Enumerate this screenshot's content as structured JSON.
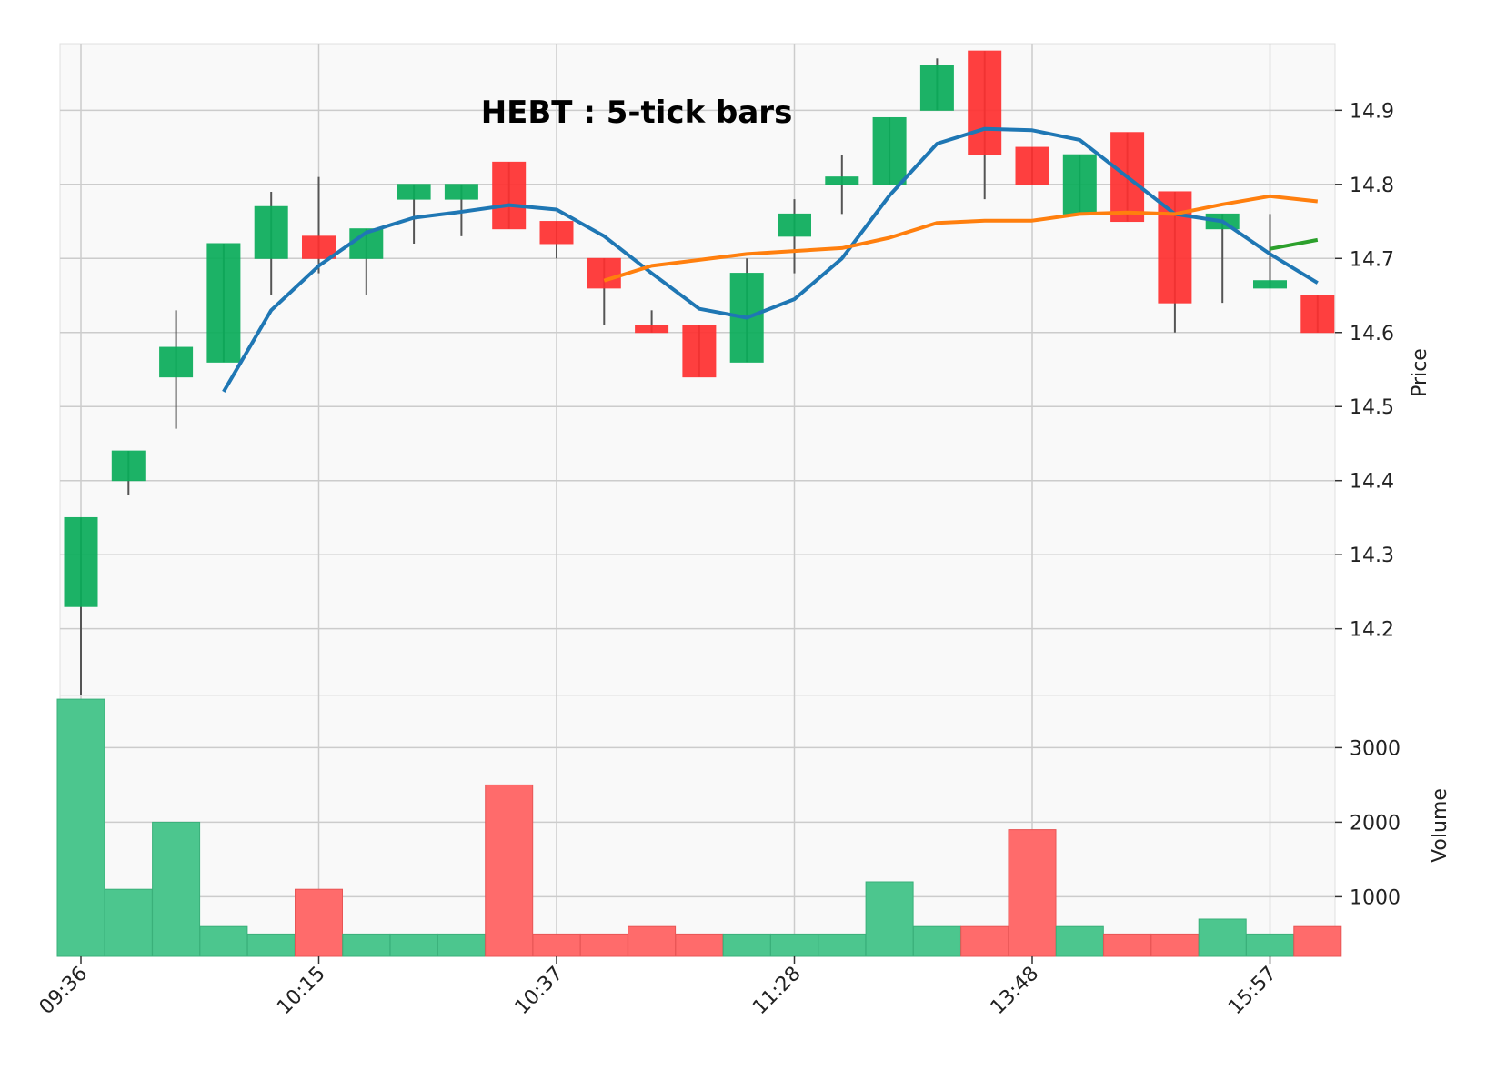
{
  "chart_data": {
    "type": "candlestick",
    "title": "HEBT : 5-tick bars",
    "colors": {
      "up": "#0aad5a",
      "down": "#ff3030",
      "vol_up": "#4cc68e",
      "vol_down": "#ff6b6b",
      "ma_fast": "#1f77b4",
      "ma_mid": "#ff7f0e",
      "ma_slow": "#2ca02c",
      "wick": "#555555",
      "grid": "#cccccc",
      "background": "#f9f9f9"
    },
    "price_axis": {
      "label": "Price",
      "ylim": [
        14.11,
        14.99
      ],
      "ticks": [
        14.2,
        14.3,
        14.4,
        14.5,
        14.6,
        14.7,
        14.8,
        14.9
      ]
    },
    "volume_axis": {
      "label": "Volume",
      "ylim": [
        200,
        3700
      ],
      "ticks": [
        1000,
        2000,
        3000
      ]
    },
    "x_tick_labels": [
      {
        "label": "09:36",
        "index": 0
      },
      {
        "label": "10:15",
        "index": 5
      },
      {
        "label": "10:37",
        "index": 10
      },
      {
        "label": "11:28",
        "index": 15
      },
      {
        "label": "13:48",
        "index": 20
      },
      {
        "label": "15:57",
        "index": 25
      }
    ],
    "candles": [
      {
        "open": 14.23,
        "high": 14.35,
        "low": 14.11,
        "close": 14.35,
        "volume": 3650
      },
      {
        "open": 14.4,
        "high": 14.44,
        "low": 14.38,
        "close": 14.44,
        "volume": 1100
      },
      {
        "open": 14.54,
        "high": 14.63,
        "low": 14.47,
        "close": 14.58,
        "volume": 2000
      },
      {
        "open": 14.56,
        "high": 14.72,
        "low": 14.56,
        "close": 14.72,
        "volume": 600
      },
      {
        "open": 14.7,
        "high": 14.79,
        "low": 14.65,
        "close": 14.77,
        "volume": 500
      },
      {
        "open": 14.73,
        "high": 14.81,
        "low": 14.68,
        "close": 14.7,
        "volume": 1100
      },
      {
        "open": 14.7,
        "high": 14.74,
        "low": 14.65,
        "close": 14.74,
        "volume": 500
      },
      {
        "open": 14.78,
        "high": 14.8,
        "low": 14.72,
        "close": 14.8,
        "volume": 500
      },
      {
        "open": 14.78,
        "high": 14.8,
        "low": 14.73,
        "close": 14.8,
        "volume": 500
      },
      {
        "open": 14.83,
        "high": 14.83,
        "low": 14.74,
        "close": 14.74,
        "volume": 2500
      },
      {
        "open": 14.75,
        "high": 14.75,
        "low": 14.7,
        "close": 14.72,
        "volume": 500
      },
      {
        "open": 14.7,
        "high": 14.7,
        "low": 14.61,
        "close": 14.66,
        "volume": 500
      },
      {
        "open": 14.61,
        "high": 14.63,
        "low": 14.6,
        "close": 14.6,
        "volume": 600
      },
      {
        "open": 14.61,
        "high": 14.61,
        "low": 14.54,
        "close": 14.54,
        "volume": 500
      },
      {
        "open": 14.56,
        "high": 14.7,
        "low": 14.56,
        "close": 14.68,
        "volume": 500
      },
      {
        "open": 14.73,
        "high": 14.78,
        "low": 14.68,
        "close": 14.76,
        "volume": 500
      },
      {
        "open": 14.8,
        "high": 14.84,
        "low": 14.76,
        "close": 14.81,
        "volume": 500
      },
      {
        "open": 14.8,
        "high": 14.89,
        "low": 14.8,
        "close": 14.89,
        "volume": 1200
      },
      {
        "open": 14.9,
        "high": 14.97,
        "low": 14.9,
        "close": 14.96,
        "volume": 600
      },
      {
        "open": 14.98,
        "high": 14.98,
        "low": 14.78,
        "close": 14.84,
        "volume": 600
      },
      {
        "open": 14.85,
        "high": 14.85,
        "low": 14.8,
        "close": 14.8,
        "volume": 1900
      },
      {
        "open": 14.76,
        "high": 14.84,
        "low": 14.76,
        "close": 14.84,
        "volume": 600
      },
      {
        "open": 14.87,
        "high": 14.87,
        "low": 14.75,
        "close": 14.75,
        "volume": 500
      },
      {
        "open": 14.79,
        "high": 14.79,
        "low": 14.6,
        "close": 14.64,
        "volume": 500
      },
      {
        "open": 14.74,
        "high": 14.76,
        "low": 14.64,
        "close": 14.76,
        "volume": 700
      },
      {
        "open": 14.66,
        "high": 14.76,
        "low": 14.66,
        "close": 14.67,
        "volume": 500
      },
      {
        "open": 14.65,
        "high": 14.65,
        "low": 14.6,
        "close": 14.6,
        "volume": 600
      }
    ],
    "moving_averages": [
      {
        "id": "ma_fast",
        "start_index": 3,
        "values": [
          14.52,
          14.63,
          14.69,
          14.735,
          14.755,
          14.763,
          14.772,
          14.766,
          14.73,
          14.68,
          14.632,
          14.62,
          14.645,
          14.7,
          14.785,
          14.855,
          14.875,
          14.873,
          14.86,
          14.81,
          14.76,
          14.75,
          14.706,
          14.667
        ]
      },
      {
        "id": "ma_mid",
        "start_index": 11,
        "values": [
          14.67,
          14.69,
          14.698,
          14.706,
          14.71,
          14.714,
          14.728,
          14.748,
          14.751,
          14.751,
          14.76,
          14.762,
          14.76,
          14.773,
          14.784,
          14.777
        ]
      },
      {
        "id": "ma_slow",
        "start_index": 25,
        "values": [
          14.713,
          14.725
        ]
      }
    ]
  }
}
